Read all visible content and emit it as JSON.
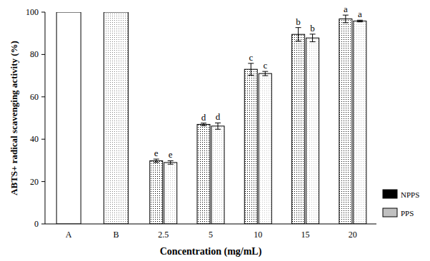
{
  "chart_data": {
    "type": "bar",
    "x_label": "Concentration (mg/mL)",
    "y_label": "ABTS+ radical scavenging activity (%)",
    "categories": [
      "A",
      "B",
      "2.5",
      "5",
      "10",
      "15",
      "20"
    ],
    "series": [
      {
        "name": "NPPS",
        "color": "#000000",
        "values": [
          null,
          null,
          29.8,
          47.0,
          73.0,
          89.5,
          96.8
        ],
        "errors": [
          null,
          null,
          0.8,
          0.6,
          2.8,
          3.2,
          1.8
        ],
        "labels": [
          null,
          null,
          "e",
          "d",
          "c",
          "b",
          "a"
        ]
      },
      {
        "name": "PPS",
        "color": "#c0c0c0",
        "values": [
          null,
          null,
          29.0,
          46.2,
          71.0,
          87.8,
          95.8
        ],
        "errors": [
          null,
          null,
          0.8,
          1.5,
          1.0,
          1.8,
          0.4
        ],
        "labels": [
          null,
          null,
          "e",
          "d",
          "c",
          "b",
          "a"
        ]
      },
      {
        "colors": [
          "#ffffff",
          "#808080",
          "#ffffff",
          "#ffffff",
          "#ffffff",
          "#ffffff",
          "#ffffff"
        ],
        "values": [
          100,
          100,
          null,
          null,
          null,
          null,
          null
        ]
      }
    ],
    "ylim": [
      0,
      100
    ],
    "yticks": [
      0,
      20,
      40,
      60,
      80,
      100
    ],
    "legend": "right"
  }
}
